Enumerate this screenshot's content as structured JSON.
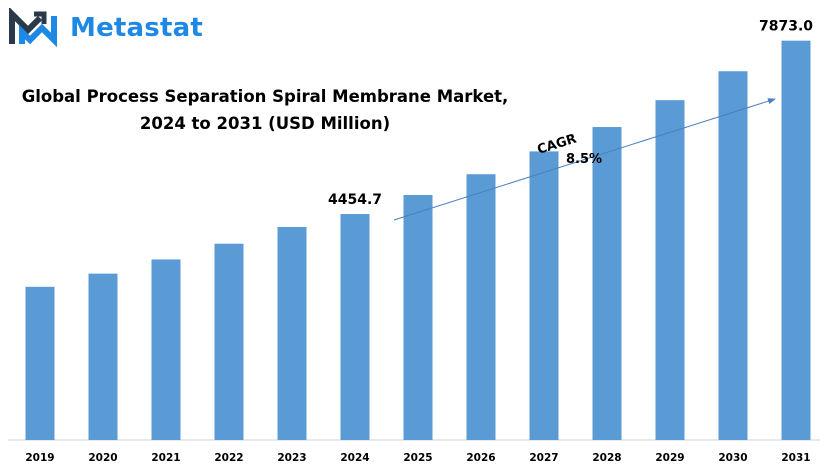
{
  "brand": {
    "name": "Metastat",
    "logo_icon": "metastat-m-logo-icon",
    "colors": {
      "primary": "#1e88e5",
      "dark": "#2b3a4a"
    }
  },
  "chart_data": {
    "type": "bar",
    "title_line1": "Global Process Separation Spiral Membrane Market,",
    "title_line2": "2024 to 2031 (USD Million)",
    "categories": [
      "2019",
      "2020",
      "2021",
      "2022",
      "2023",
      "2024",
      "2025",
      "2026",
      "2027",
      "2028",
      "2029",
      "2030",
      "2031"
    ],
    "values": [
      3020,
      3280,
      3560,
      3870,
      4200,
      4454.7,
      4830,
      5240,
      5690,
      6170,
      6700,
      7270,
      7873.0
    ],
    "data_labels": {
      "2024": "4454.7",
      "2031": "7873.0"
    },
    "annotation": {
      "line1": "CAGR",
      "line2": "8.5%"
    },
    "ylim": [
      0,
      8300
    ],
    "grid": false,
    "bar_color": "#5b9bd5",
    "axis_color": "#d0d0d0",
    "arrow_color": "#4a7fbf"
  }
}
